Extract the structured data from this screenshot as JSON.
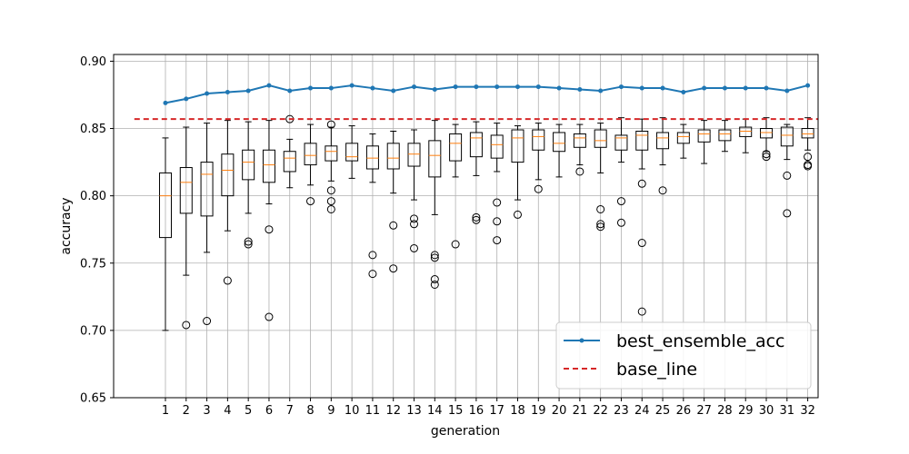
{
  "chart_data": {
    "type": "box",
    "title": "",
    "xlabel": "generation",
    "ylabel": "accuracy",
    "ylim": [
      0.65,
      0.905
    ],
    "xlim": [
      -1.5,
      32.5
    ],
    "yticks": [
      "0.65",
      "0.70",
      "0.75",
      "0.80",
      "0.85",
      "0.90"
    ],
    "ytick_values": [
      0.65,
      0.7,
      0.75,
      0.8,
      0.85,
      0.9
    ],
    "grid": true,
    "colors": {
      "line": "#1f77b4",
      "baseline": "#d62728",
      "median": "#ff7f0e",
      "box": "#000000",
      "grid": "#b0b0b0"
    },
    "categories": [
      "1",
      "2",
      "3",
      "4",
      "5",
      "6",
      "7",
      "8",
      "9",
      "10",
      "11",
      "12",
      "13",
      "14",
      "15",
      "16",
      "17",
      "18",
      "19",
      "20",
      "21",
      "22",
      "23",
      "24",
      "25",
      "26",
      "27",
      "28",
      "29",
      "30",
      "31",
      "32"
    ],
    "boxes": [
      {
        "gen": "1",
        "whislo": 0.7,
        "q1": 0.769,
        "med": 0.8,
        "q3": 0.817,
        "whishi": 0.843,
        "fliers": []
      },
      {
        "gen": "2",
        "whislo": 0.741,
        "q1": 0.787,
        "med": 0.81,
        "q3": 0.821,
        "whishi": 0.851,
        "fliers": [
          0.704
        ]
      },
      {
        "gen": "3",
        "whislo": 0.758,
        "q1": 0.785,
        "med": 0.816,
        "q3": 0.825,
        "whishi": 0.854,
        "fliers": [
          0.707
        ]
      },
      {
        "gen": "4",
        "whislo": 0.774,
        "q1": 0.8,
        "med": 0.819,
        "q3": 0.831,
        "whishi": 0.856,
        "fliers": [
          0.737
        ]
      },
      {
        "gen": "5",
        "whislo": 0.787,
        "q1": 0.812,
        "med": 0.825,
        "q3": 0.834,
        "whishi": 0.855,
        "fliers": [
          0.766,
          0.764
        ]
      },
      {
        "gen": "6",
        "whislo": 0.794,
        "q1": 0.81,
        "med": 0.823,
        "q3": 0.834,
        "whishi": 0.856,
        "fliers": [
          0.775,
          0.71
        ]
      },
      {
        "gen": "7",
        "whislo": 0.806,
        "q1": 0.818,
        "med": 0.828,
        "q3": 0.833,
        "whishi": 0.842,
        "fliers": [
          0.857
        ]
      },
      {
        "gen": "8",
        "whislo": 0.808,
        "q1": 0.823,
        "med": 0.83,
        "q3": 0.839,
        "whishi": 0.853,
        "fliers": [
          0.796
        ]
      },
      {
        "gen": "9",
        "whislo": 0.811,
        "q1": 0.826,
        "med": 0.833,
        "q3": 0.837,
        "whishi": 0.851,
        "fliers": [
          0.853,
          0.804,
          0.796,
          0.79
        ]
      },
      {
        "gen": "10",
        "whislo": 0.813,
        "q1": 0.826,
        "med": 0.829,
        "q3": 0.839,
        "whishi": 0.852,
        "fliers": []
      },
      {
        "gen": "11",
        "whislo": 0.81,
        "q1": 0.82,
        "med": 0.828,
        "q3": 0.837,
        "whishi": 0.846,
        "fliers": [
          0.756,
          0.742
        ]
      },
      {
        "gen": "12",
        "whislo": 0.802,
        "q1": 0.82,
        "med": 0.828,
        "q3": 0.839,
        "whishi": 0.848,
        "fliers": [
          0.778,
          0.746
        ]
      },
      {
        "gen": "13",
        "whislo": 0.797,
        "q1": 0.822,
        "med": 0.831,
        "q3": 0.839,
        "whishi": 0.849,
        "fliers": [
          0.783,
          0.779,
          0.761
        ]
      },
      {
        "gen": "14",
        "whislo": 0.786,
        "q1": 0.814,
        "med": 0.83,
        "q3": 0.841,
        "whishi": 0.856,
        "fliers": [
          0.756,
          0.754,
          0.738,
          0.734
        ]
      },
      {
        "gen": "15",
        "whislo": 0.814,
        "q1": 0.826,
        "med": 0.839,
        "q3": 0.846,
        "whishi": 0.853,
        "fliers": [
          0.764
        ]
      },
      {
        "gen": "16",
        "whislo": 0.815,
        "q1": 0.829,
        "med": 0.843,
        "q3": 0.847,
        "whishi": 0.855,
        "fliers": [
          0.784,
          0.782
        ]
      },
      {
        "gen": "17",
        "whislo": 0.818,
        "q1": 0.828,
        "med": 0.838,
        "q3": 0.845,
        "whishi": 0.854,
        "fliers": [
          0.795,
          0.781,
          0.767
        ]
      },
      {
        "gen": "18",
        "whislo": 0.797,
        "q1": 0.825,
        "med": 0.843,
        "q3": 0.849,
        "whishi": 0.852,
        "fliers": [
          0.786
        ]
      },
      {
        "gen": "19",
        "whislo": 0.812,
        "q1": 0.834,
        "med": 0.844,
        "q3": 0.849,
        "whishi": 0.854,
        "fliers": [
          0.805
        ]
      },
      {
        "gen": "20",
        "whislo": 0.814,
        "q1": 0.833,
        "med": 0.839,
        "q3": 0.847,
        "whishi": 0.853,
        "fliers": []
      },
      {
        "gen": "21",
        "whislo": 0.823,
        "q1": 0.836,
        "med": 0.843,
        "q3": 0.846,
        "whishi": 0.853,
        "fliers": [
          0.818
        ]
      },
      {
        "gen": "22",
        "whislo": 0.817,
        "q1": 0.836,
        "med": 0.841,
        "q3": 0.849,
        "whishi": 0.854,
        "fliers": [
          0.79,
          0.779,
          0.777
        ]
      },
      {
        "gen": "23",
        "whislo": 0.825,
        "q1": 0.834,
        "med": 0.843,
        "q3": 0.845,
        "whishi": 0.858,
        "fliers": [
          0.796,
          0.78
        ]
      },
      {
        "gen": "24",
        "whislo": 0.82,
        "q1": 0.834,
        "med": 0.845,
        "q3": 0.848,
        "whishi": 0.857,
        "fliers": [
          0.809,
          0.765,
          0.714
        ]
      },
      {
        "gen": "25",
        "whislo": 0.823,
        "q1": 0.835,
        "med": 0.843,
        "q3": 0.847,
        "whishi": 0.858,
        "fliers": [
          0.804
        ]
      },
      {
        "gen": "26",
        "whislo": 0.828,
        "q1": 0.839,
        "med": 0.844,
        "q3": 0.847,
        "whishi": 0.853,
        "fliers": []
      },
      {
        "gen": "27",
        "whislo": 0.824,
        "q1": 0.84,
        "med": 0.846,
        "q3": 0.849,
        "whishi": 0.856,
        "fliers": []
      },
      {
        "gen": "28",
        "whislo": 0.833,
        "q1": 0.841,
        "med": 0.846,
        "q3": 0.849,
        "whishi": 0.856,
        "fliers": []
      },
      {
        "gen": "29",
        "whislo": 0.832,
        "q1": 0.844,
        "med": 0.848,
        "q3": 0.851,
        "whishi": 0.857,
        "fliers": []
      },
      {
        "gen": "30",
        "whislo": 0.833,
        "q1": 0.843,
        "med": 0.847,
        "q3": 0.85,
        "whishi": 0.858,
        "fliers": [
          0.831,
          0.829
        ]
      },
      {
        "gen": "31",
        "whislo": 0.827,
        "q1": 0.837,
        "med": 0.845,
        "q3": 0.851,
        "whishi": 0.853,
        "fliers": [
          0.815,
          0.787
        ]
      },
      {
        "gen": "32",
        "whislo": 0.834,
        "q1": 0.843,
        "med": 0.846,
        "q3": 0.85,
        "whishi": 0.858,
        "fliers": [
          0.829,
          0.823,
          0.822
        ]
      }
    ],
    "series": [
      {
        "name": "best_ensemble_acc",
        "type": "line",
        "values": [
          0.869,
          0.872,
          0.876,
          0.877,
          0.878,
          0.882,
          0.878,
          0.88,
          0.88,
          0.882,
          0.88,
          0.878,
          0.881,
          0.879,
          0.881,
          0.881,
          0.881,
          0.881,
          0.881,
          0.88,
          0.879,
          0.878,
          0.881,
          0.88,
          0.88,
          0.877,
          0.88,
          0.88,
          0.88,
          0.88,
          0.878,
          0.882
        ]
      },
      {
        "name": "base_line",
        "type": "hline",
        "value": 0.857,
        "xrange": [
          -0.5,
          32.5
        ]
      }
    ],
    "legend": {
      "position": "lower-right",
      "entries": [
        "best_ensemble_acc",
        "base_line"
      ]
    }
  }
}
